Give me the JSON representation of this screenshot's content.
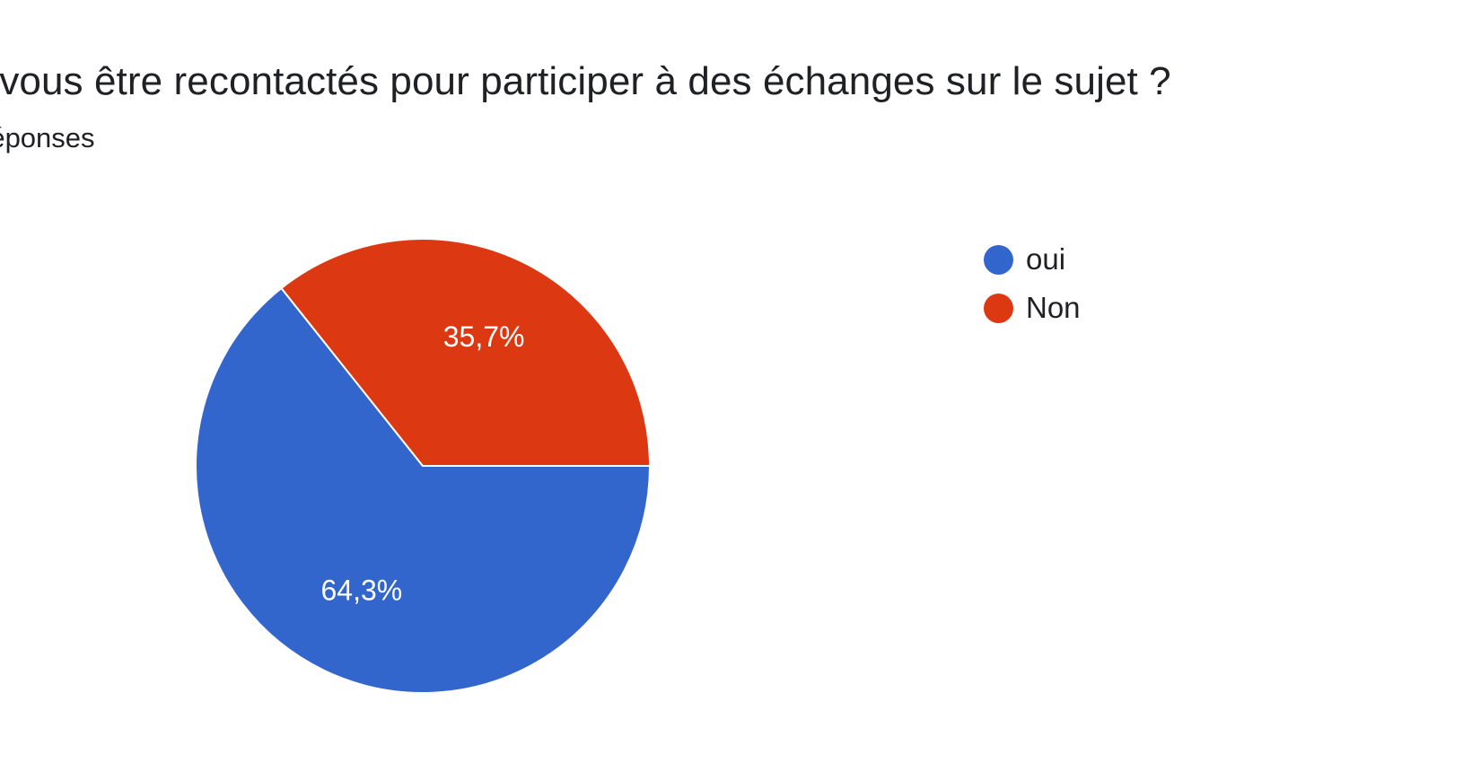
{
  "title": "tez vous être recontactés pour participer à des échanges sur le sujet ?",
  "subtitle": "réponses",
  "chart_data": {
    "type": "pie",
    "title": "tez vous être recontactés pour participer à des échanges sur le sujet ?",
    "subtitle": "réponses",
    "categories": [
      "oui",
      "Non"
    ],
    "values": [
      64.3,
      35.7
    ],
    "labels": [
      "64,3%",
      "35,7%"
    ],
    "colors": [
      "#3366cc",
      "#dc3912"
    ],
    "legend_position": "right"
  }
}
